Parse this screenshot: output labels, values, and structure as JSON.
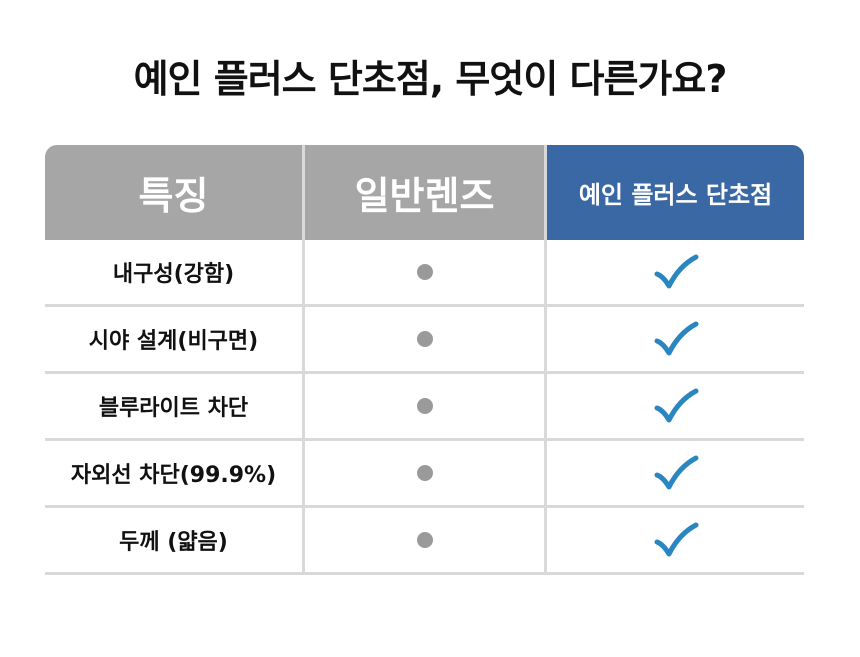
{
  "title": "예인 플러스 단초점, 무엇이 다른가요?",
  "table": {
    "headers": [
      "특징",
      "일반렌즈",
      "예인 플러스 단초점"
    ],
    "rows": [
      {
        "feature": "내구성(강함)",
        "normal": "dot-icon",
        "yein": "check-icon"
      },
      {
        "feature": "시야 설계(비구면)",
        "normal": "dot-icon",
        "yein": "check-icon"
      },
      {
        "feature": "블루라이트 차단",
        "normal": "dot-icon",
        "yein": "check-icon"
      },
      {
        "feature": "자외선 차단(99.9%)",
        "normal": "dot-icon",
        "yein": "check-icon"
      },
      {
        "feature": "두께 (얇음)",
        "normal": "dot-icon",
        "yein": "check-icon"
      }
    ]
  },
  "colors": {
    "header_gray": "#a6a6a6",
    "header_blue": "#3a68a4",
    "check": "#2a86c0",
    "dot": "#9a9a9a"
  }
}
